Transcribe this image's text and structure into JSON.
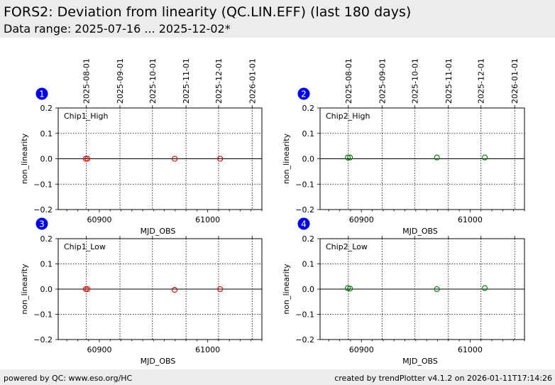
{
  "header": {
    "title": "FORS2: Deviation from linearity (QC.LIN.EFF) (last 180 days)",
    "subtitle": "Data range: 2025-07-16 ... 2025-12-02*"
  },
  "footer": {
    "left": "powered by QC: www.eso.org/HC",
    "right": "created by trendPlotter v4.1.2 on 2026-01-11T17:14:26"
  },
  "colors": {
    "marker_circle": "#0000ee",
    "chip1": "#dd0000",
    "chip2": "#007700",
    "header_bg": "#ececec"
  },
  "chart_data": [
    {
      "type": "scatter",
      "badge": "1",
      "label": "Chip1_High",
      "color": "#dd0000",
      "xlabel": "MJD_OBS",
      "ylabel": "non_linearity",
      "xlim": [
        60862,
        61050
      ],
      "ylim": [
        -0.2,
        0.2
      ],
      "xticks": [
        60900,
        61000
      ],
      "yticks": [
        0.2,
        0.1,
        0.0,
        -0.1,
        -0.2
      ],
      "ytick_labels": [
        "0.2",
        "0.1",
        "0.0",
        "−0.1",
        "−0.2"
      ],
      "date_ticks": [
        {
          "label": "2025-08-01",
          "mjd": 60888
        },
        {
          "label": "2025-09-01",
          "mjd": 60919
        },
        {
          "label": "2025-10-01",
          "mjd": 60949
        },
        {
          "label": "2025-11-01",
          "mjd": 60980
        },
        {
          "label": "2025-12-01",
          "mjd": 61010
        },
        {
          "label": "2026-01-01",
          "mjd": 61041
        }
      ],
      "points": [
        {
          "x": 60887.5,
          "y": 0.0
        },
        {
          "x": 60889.0,
          "y": 0.0
        },
        {
          "x": 60969.5,
          "y": 0.0
        },
        {
          "x": 61011.5,
          "y": 0.0
        }
      ]
    },
    {
      "type": "scatter",
      "badge": "2",
      "label": "Chip2_High",
      "color": "#007700",
      "xlabel": "MJD_OBS",
      "ylabel": "non_linearity",
      "xlim": [
        60862,
        61050
      ],
      "ylim": [
        -0.2,
        0.2
      ],
      "xticks": [
        60900,
        61000
      ],
      "yticks": [
        0.2,
        0.1,
        0.0,
        -0.1,
        -0.2
      ],
      "ytick_labels": [
        "0.2",
        "0.1",
        "0.0",
        "−0.1",
        "−0.2"
      ],
      "date_ticks": [
        {
          "label": "2025-08-01",
          "mjd": 60888
        },
        {
          "label": "2025-09-01",
          "mjd": 60919
        },
        {
          "label": "2025-10-01",
          "mjd": 60949
        },
        {
          "label": "2025-11-01",
          "mjd": 60980
        },
        {
          "label": "2025-12-01",
          "mjd": 61010
        },
        {
          "label": "2026-01-01",
          "mjd": 61041
        }
      ],
      "points": [
        {
          "x": 60887.5,
          "y": 0.005
        },
        {
          "x": 60889.5,
          "y": 0.005
        },
        {
          "x": 60969.5,
          "y": 0.005
        },
        {
          "x": 61013.5,
          "y": 0.005
        }
      ]
    },
    {
      "type": "scatter",
      "badge": "3",
      "label": "Chip1_Low",
      "color": "#dd0000",
      "xlabel": "MJD_OBS",
      "ylabel": "non_linearity",
      "xlim": [
        60862,
        61050
      ],
      "ylim": [
        -0.2,
        0.2
      ],
      "xticks": [
        60900,
        61000
      ],
      "yticks": [
        0.2,
        0.1,
        0.0,
        -0.1,
        -0.2
      ],
      "ytick_labels": [
        "0.2",
        "0.1",
        "0.0",
        "−0.1",
        "−0.2"
      ],
      "date_ticks": [
        {
          "label": "2025-08-01",
          "mjd": 60888
        },
        {
          "label": "2025-09-01",
          "mjd": 60919
        },
        {
          "label": "2025-10-01",
          "mjd": 60949
        },
        {
          "label": "2025-11-01",
          "mjd": 60980
        },
        {
          "label": "2025-12-01",
          "mjd": 61010
        },
        {
          "label": "2026-01-01",
          "mjd": 61041
        }
      ],
      "points": [
        {
          "x": 60887.5,
          "y": 0.0
        },
        {
          "x": 60889.0,
          "y": 0.0
        },
        {
          "x": 60969.5,
          "y": -0.003
        },
        {
          "x": 61011.5,
          "y": 0.0
        }
      ]
    },
    {
      "type": "scatter",
      "badge": "4",
      "label": "Chip2_Low",
      "color": "#007700",
      "xlabel": "MJD_OBS",
      "ylabel": "non_linearity",
      "xlim": [
        60862,
        61050
      ],
      "ylim": [
        -0.2,
        0.2
      ],
      "xticks": [
        60900,
        61000
      ],
      "yticks": [
        0.2,
        0.1,
        0.0,
        -0.1,
        -0.2
      ],
      "ytick_labels": [
        "0.2",
        "0.1",
        "0.0",
        "−0.1",
        "−0.2"
      ],
      "date_ticks": [
        {
          "label": "2025-08-01",
          "mjd": 60888
        },
        {
          "label": "2025-09-01",
          "mjd": 60919
        },
        {
          "label": "2025-10-01",
          "mjd": 60949
        },
        {
          "label": "2025-11-01",
          "mjd": 60980
        },
        {
          "label": "2025-12-01",
          "mjd": 61010
        },
        {
          "label": "2026-01-01",
          "mjd": 61041
        }
      ],
      "points": [
        {
          "x": 60887.5,
          "y": 0.004
        },
        {
          "x": 60889.5,
          "y": 0.002
        },
        {
          "x": 60969.5,
          "y": 0.0
        },
        {
          "x": 61013.5,
          "y": 0.004
        }
      ]
    }
  ]
}
